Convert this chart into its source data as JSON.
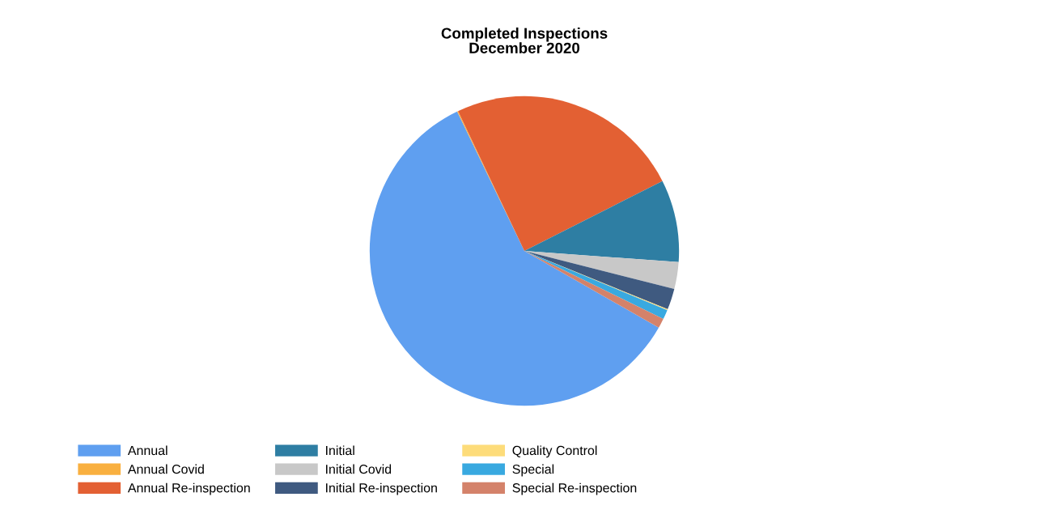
{
  "chart_data": {
    "type": "pie",
    "title": "Completed Inspections\nDecember 2020",
    "categories": [
      "Annual",
      "Annual Covid",
      "Annual Re-inspection",
      "Initial",
      "Initial Covid",
      "Initial Re-inspection",
      "Quality Control",
      "Special",
      "Special Re-inspection"
    ],
    "values": [
      59.6,
      0.1,
      24.6,
      8.6,
      2.8,
      2.2,
      0.1,
      1.0,
      1.0
    ],
    "colors": [
      "#5f9ff0",
      "#f9b040",
      "#e36033",
      "#2e7ea3",
      "#c8c8c8",
      "#3f5a80",
      "#fddc7a",
      "#39a9e0",
      "#d4826a"
    ],
    "legend": "bottom"
  }
}
